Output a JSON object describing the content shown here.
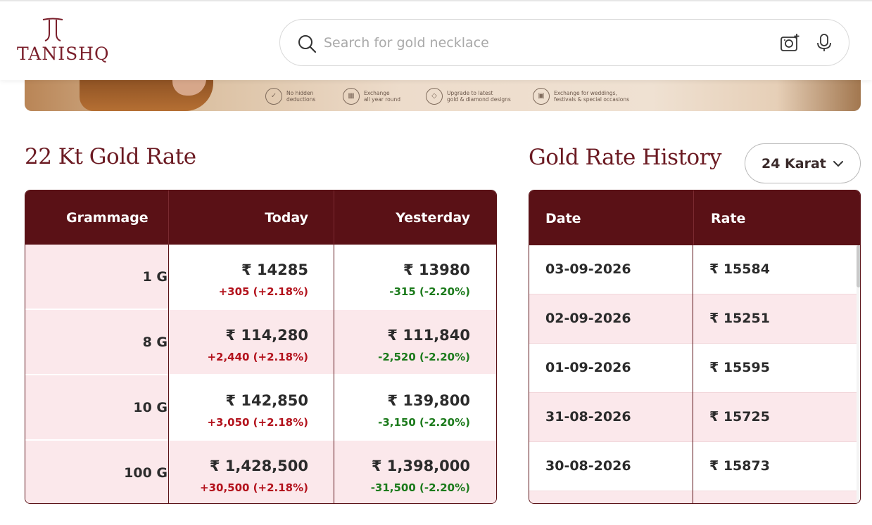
{
  "brand": {
    "name": "TANISHQ",
    "color": "#7a1f2b"
  },
  "search": {
    "placeholder": "Search for gold necklace"
  },
  "banner": {
    "features": [
      {
        "icon": "check-circle-icon",
        "line1": "No hidden",
        "line2": "deductions"
      },
      {
        "icon": "calendar-icon",
        "line1": "Exchange",
        "line2": "all year round"
      },
      {
        "icon": "diamond-icon",
        "line1": "Upgrade to latest",
        "line2": "gold & diamond designs"
      },
      {
        "icon": "gift-icon",
        "line1": "Exchange for weddings,",
        "line2": "festivals & special occasions"
      }
    ]
  },
  "gold_rate": {
    "title": "22 Kt Gold Rate",
    "headers": {
      "grammage": "Grammage",
      "today": "Today",
      "yesterday": "Yesterday"
    },
    "rows": [
      {
        "grammage": "1 G",
        "today": "₹ 14285",
        "today_change": "+305 (+2.18%)",
        "yesterday": "₹ 13980",
        "yesterday_change": "-315 (-2.20%)"
      },
      {
        "grammage": "8 G",
        "today": "₹ 114,280",
        "today_change": "+2,440 (+2.18%)",
        "yesterday": "₹ 111,840",
        "yesterday_change": "-2,520 (-2.20%)"
      },
      {
        "grammage": "10 G",
        "today": "₹ 142,850",
        "today_change": "+3,050 (+2.18%)",
        "yesterday": "₹ 139,800",
        "yesterday_change": "-3,150 (-2.20%)"
      },
      {
        "grammage": "100 G",
        "today": "₹ 1,428,500",
        "today_change": "+30,500 (+2.18%)",
        "yesterday": "₹ 1,398,000",
        "yesterday_change": "-31,500 (-2.20%)"
      }
    ]
  },
  "history": {
    "title": "Gold Rate History",
    "karat_selected": "24 Karat",
    "headers": {
      "date": "Date",
      "rate": "Rate"
    },
    "rows": [
      {
        "date": "03-09-2026",
        "rate": "₹ 15584"
      },
      {
        "date": "02-09-2026",
        "rate": "₹ 15251"
      },
      {
        "date": "01-09-2026",
        "rate": "₹ 15595"
      },
      {
        "date": "31-08-2026",
        "rate": "₹ 15725"
      },
      {
        "date": "30-08-2026",
        "rate": "₹ 15873"
      }
    ]
  },
  "colors": {
    "maroon": "#5a1116",
    "title": "#6b1a22",
    "row_pink": "#fbe8eb",
    "up": "#b3121c",
    "down": "#1b7a1b"
  }
}
